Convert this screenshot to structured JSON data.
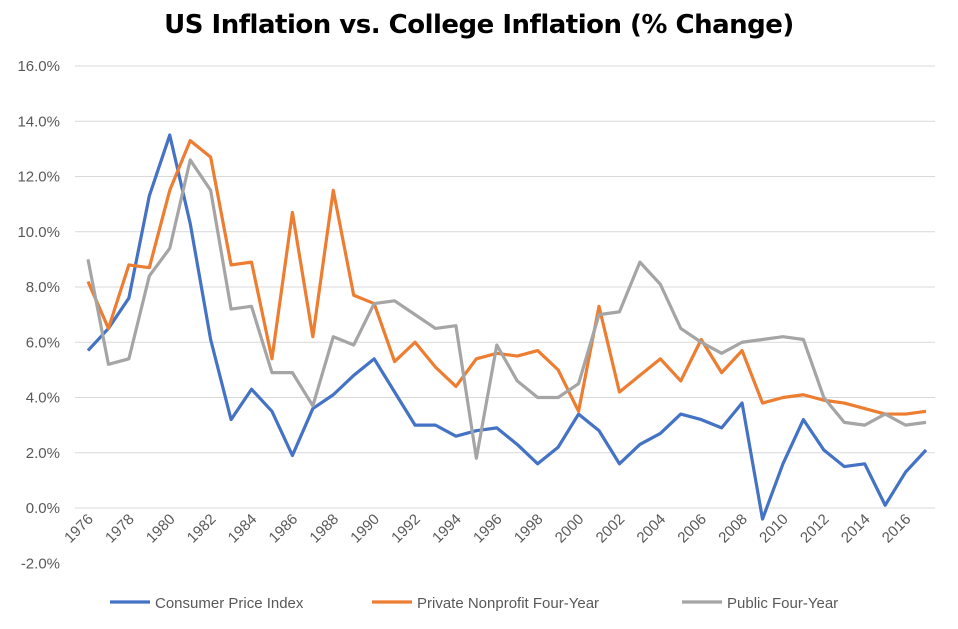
{
  "chart_data": {
    "type": "line",
    "title": "US Inflation vs. College Inflation (% Change)",
    "x": [
      1976,
      1977,
      1978,
      1979,
      1980,
      1981,
      1982,
      1983,
      1984,
      1985,
      1986,
      1987,
      1988,
      1989,
      1990,
      1991,
      1992,
      1993,
      1994,
      1995,
      1996,
      1997,
      1998,
      1999,
      2000,
      2001,
      2002,
      2003,
      2004,
      2005,
      2006,
      2007,
      2008,
      2009,
      2010,
      2011,
      2012,
      2013,
      2014,
      2015,
      2016,
      2017
    ],
    "x_tick_labels": [
      "1976",
      "1978",
      "1980",
      "1982",
      "1984",
      "1986",
      "1988",
      "1990",
      "1992",
      "1994",
      "1996",
      "1998",
      "2000",
      "2002",
      "2004",
      "2006",
      "2008",
      "2010",
      "2012",
      "2014",
      "2016"
    ],
    "y_tick_labels": [
      "-2.0%",
      "0.0%",
      "2.0%",
      "4.0%",
      "6.0%",
      "8.0%",
      "10.0%",
      "12.0%",
      "14.0%",
      "16.0%"
    ],
    "ylim": [
      -2,
      16
    ],
    "grid": true,
    "legend_position": "bottom",
    "series": [
      {
        "name": "Consumer Price Index",
        "color": "#4472C4",
        "values": [
          5.7,
          6.5,
          7.6,
          11.3,
          13.5,
          10.3,
          6.1,
          3.2,
          4.3,
          3.5,
          1.9,
          3.6,
          4.1,
          4.8,
          5.4,
          4.2,
          3.0,
          3.0,
          2.6,
          2.8,
          2.9,
          2.3,
          1.6,
          2.2,
          3.4,
          2.8,
          1.6,
          2.3,
          2.7,
          3.4,
          3.2,
          2.9,
          3.8,
          -0.4,
          1.6,
          3.2,
          2.1,
          1.5,
          1.6,
          0.1,
          1.3,
          2.1
        ]
      },
      {
        "name": "Private Nonprofit Four-Year",
        "color": "#ED7D31",
        "values": [
          8.2,
          6.5,
          8.8,
          8.7,
          11.5,
          13.3,
          12.7,
          8.8,
          8.9,
          5.4,
          10.7,
          6.2,
          11.5,
          7.7,
          7.4,
          5.3,
          6.0,
          5.1,
          4.4,
          5.4,
          5.6,
          5.5,
          5.7,
          5.0,
          3.5,
          7.3,
          4.2,
          4.8,
          5.4,
          4.6,
          6.1,
          4.9,
          5.7,
          3.8,
          4.0,
          4.1,
          3.9,
          3.8,
          3.6,
          3.4,
          3.4,
          3.5
        ]
      },
      {
        "name": "Public Four-Year",
        "color": "#A5A5A5",
        "values": [
          9.0,
          5.2,
          5.4,
          8.4,
          9.4,
          12.6,
          11.5,
          7.2,
          7.3,
          4.9,
          4.9,
          3.7,
          6.2,
          5.9,
          7.4,
          7.5,
          7.0,
          6.5,
          6.6,
          1.8,
          5.9,
          4.6,
          4.0,
          4.0,
          4.5,
          7.0,
          7.1,
          8.9,
          8.1,
          6.5,
          6.0,
          5.6,
          6.0,
          6.1,
          6.2,
          6.1,
          4.0,
          3.1,
          3.0,
          3.4,
          3.0,
          3.1
        ]
      }
    ]
  }
}
